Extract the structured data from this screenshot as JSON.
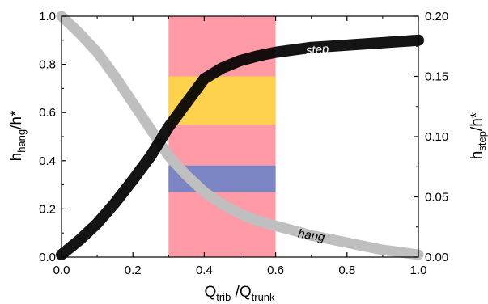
{
  "chart_data": {
    "type": "line",
    "xlabel": {
      "base1": "Q",
      "sub1": "trib",
      "mid": " /Q",
      "sub2": "trunk"
    },
    "ylabel_left": {
      "base": "h",
      "sub": "hang",
      "tail": "/h*"
    },
    "ylabel_right": {
      "base": "h",
      "sub": "step",
      "tail": "/h*"
    },
    "xlim": [
      0.0,
      1.0
    ],
    "ylim_left": [
      0.0,
      1.0
    ],
    "ylim_right": [
      0.0,
      0.2
    ],
    "x_ticks": [
      "0.0",
      "0.2",
      "0.4",
      "0.6",
      "0.8",
      "1.0"
    ],
    "y_left_ticks": [
      "0.0",
      "0.2",
      "0.4",
      "0.6",
      "0.8",
      "1.0"
    ],
    "y_right_ticks": [
      "0.00",
      "0.05",
      "0.10",
      "0.15",
      "0.20"
    ],
    "grid": false,
    "bands": [
      {
        "x": [
          0.3,
          0.6
        ],
        "y": [
          0.0,
          1.0
        ],
        "color": "#ff9aa6"
      },
      {
        "x": [
          0.3,
          0.6
        ],
        "y": [
          0.55,
          0.75
        ],
        "color": "#ffd24d"
      },
      {
        "x": [
          0.3,
          0.6
        ],
        "y": [
          0.27,
          0.38
        ],
        "color": "#7b85c4"
      }
    ],
    "series": [
      {
        "name": "hang",
        "axis": "left",
        "color": "#bfbfbf",
        "x": [
          0.0,
          0.05,
          0.1,
          0.15,
          0.2,
          0.25,
          0.3,
          0.35,
          0.4,
          0.45,
          0.5,
          0.55,
          0.6,
          0.65,
          0.7,
          0.75,
          0.8,
          0.85,
          0.9,
          0.95,
          1.0
        ],
        "y": [
          1.0,
          0.93,
          0.85,
          0.75,
          0.64,
          0.53,
          0.42,
          0.34,
          0.27,
          0.22,
          0.18,
          0.15,
          0.13,
          0.11,
          0.09,
          0.075,
          0.06,
          0.045,
          0.03,
          0.02,
          0.01
        ]
      },
      {
        "name": "step",
        "axis": "right",
        "color": "#000000",
        "x": [
          0.0,
          0.05,
          0.1,
          0.15,
          0.2,
          0.25,
          0.3,
          0.35,
          0.4,
          0.45,
          0.5,
          0.55,
          0.6,
          0.65,
          0.7,
          0.75,
          0.8,
          0.85,
          0.9,
          0.95,
          1.0
        ],
        "y": [
          0.002,
          0.014,
          0.028,
          0.045,
          0.064,
          0.084,
          0.108,
          0.128,
          0.148,
          0.157,
          0.163,
          0.167,
          0.17,
          0.172,
          0.174,
          0.175,
          0.176,
          0.177,
          0.178,
          0.179,
          0.18
        ]
      }
    ]
  }
}
